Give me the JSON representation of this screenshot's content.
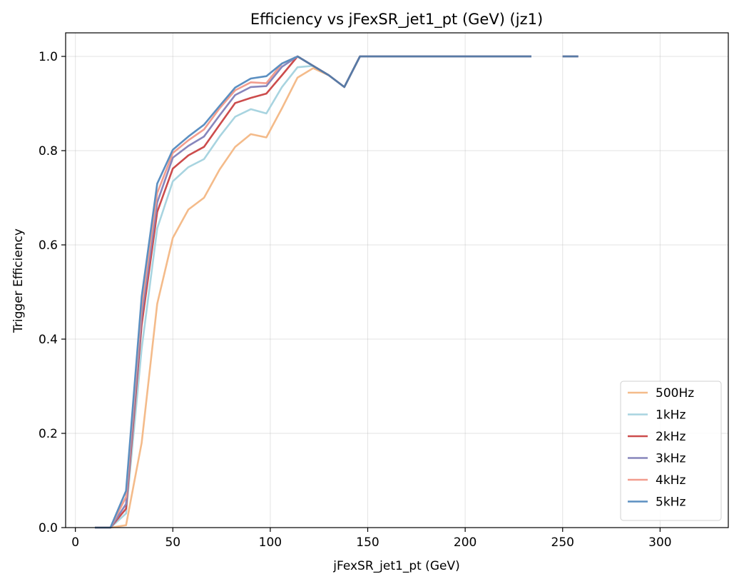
{
  "chart_data": {
    "type": "line",
    "title": "Efficiency vs jFexSR_jet1_pt (GeV) (jz1)",
    "xlabel": "jFexSR_jet1_pt (GeV)",
    "ylabel": "Trigger Efficiency",
    "xlim": [
      -5,
      335
    ],
    "ylim": [
      0,
      1.05
    ],
    "xticks": [
      0,
      50,
      100,
      150,
      200,
      250,
      300
    ],
    "yticks": [
      0.0,
      0.2,
      0.4,
      0.6,
      0.8,
      1.0
    ],
    "xtick_labels": [
      "0",
      "50",
      "100",
      "150",
      "200",
      "250",
      "300"
    ],
    "ytick_labels": [
      "0.0",
      "0.2",
      "0.4",
      "0.6",
      "0.8",
      "1.0"
    ],
    "grid": true,
    "legend_position": "lower right",
    "series": [
      {
        "name": "500Hz",
        "color": "#f4bb8a",
        "points": [
          [
            10,
            0
          ],
          [
            18,
            0
          ],
          [
            26,
            0.005
          ],
          [
            34,
            0.18
          ],
          [
            42,
            0.475
          ],
          [
            50,
            0.615
          ],
          [
            58,
            0.675
          ],
          [
            66,
            0.7
          ],
          [
            74,
            0.76
          ],
          [
            82,
            0.808
          ],
          [
            90,
            0.835
          ],
          [
            98,
            0.828
          ],
          [
            106,
            0.89
          ],
          [
            114,
            0.955
          ],
          [
            122,
            0.975
          ],
          [
            130,
            0.96
          ],
          [
            138,
            0.935
          ],
          [
            146,
            1
          ],
          [
            234,
            1
          ],
          null,
          [
            250,
            1
          ],
          [
            258,
            1
          ]
        ]
      },
      {
        "name": "1kHz",
        "color": "#a8d4e0",
        "points": [
          [
            10,
            0
          ],
          [
            18,
            0
          ],
          [
            26,
            0.03
          ],
          [
            34,
            0.38
          ],
          [
            42,
            0.635
          ],
          [
            50,
            0.735
          ],
          [
            58,
            0.765
          ],
          [
            66,
            0.782
          ],
          [
            74,
            0.83
          ],
          [
            82,
            0.872
          ],
          [
            90,
            0.888
          ],
          [
            98,
            0.879
          ],
          [
            106,
            0.935
          ],
          [
            114,
            0.977
          ],
          [
            122,
            0.98
          ],
          [
            130,
            0.96
          ],
          [
            138,
            0.935
          ],
          [
            146,
            1
          ],
          [
            234,
            1
          ],
          null,
          [
            250,
            1
          ],
          [
            258,
            1
          ]
        ]
      },
      {
        "name": "2kHz",
        "color": "#cc4c4c",
        "points": [
          [
            10,
            0
          ],
          [
            18,
            0
          ],
          [
            26,
            0.04
          ],
          [
            34,
            0.43
          ],
          [
            42,
            0.67
          ],
          [
            50,
            0.762
          ],
          [
            58,
            0.79
          ],
          [
            66,
            0.808
          ],
          [
            74,
            0.855
          ],
          [
            82,
            0.901
          ],
          [
            90,
            0.912
          ],
          [
            98,
            0.921
          ],
          [
            106,
            0.96
          ],
          [
            114,
            1
          ],
          [
            122,
            0.98
          ],
          [
            130,
            0.96
          ],
          [
            138,
            0.935
          ],
          [
            146,
            1
          ],
          [
            234,
            1
          ],
          null,
          [
            250,
            1
          ],
          [
            258,
            1
          ]
        ]
      },
      {
        "name": "3kHz",
        "color": "#8786bc",
        "points": [
          [
            10,
            0
          ],
          [
            18,
            0
          ],
          [
            26,
            0.05
          ],
          [
            34,
            0.45
          ],
          [
            42,
            0.69
          ],
          [
            50,
            0.785
          ],
          [
            58,
            0.81
          ],
          [
            66,
            0.83
          ],
          [
            74,
            0.875
          ],
          [
            82,
            0.918
          ],
          [
            90,
            0.935
          ],
          [
            98,
            0.937
          ],
          [
            106,
            0.978
          ],
          [
            114,
            1
          ],
          [
            122,
            0.98
          ],
          [
            130,
            0.96
          ],
          [
            138,
            0.935
          ],
          [
            146,
            1
          ],
          [
            234,
            1
          ],
          null,
          [
            250,
            1
          ],
          [
            258,
            1
          ]
        ]
      },
      {
        "name": "4kHz",
        "color": "#f29d8e",
        "points": [
          [
            10,
            0
          ],
          [
            18,
            0
          ],
          [
            26,
            0.065
          ],
          [
            34,
            0.47
          ],
          [
            42,
            0.71
          ],
          [
            50,
            0.795
          ],
          [
            58,
            0.822
          ],
          [
            66,
            0.845
          ],
          [
            74,
            0.89
          ],
          [
            82,
            0.928
          ],
          [
            90,
            0.945
          ],
          [
            98,
            0.943
          ],
          [
            106,
            0.985
          ],
          [
            114,
            1
          ],
          [
            122,
            0.98
          ],
          [
            130,
            0.96
          ],
          [
            138,
            0.935
          ],
          [
            146,
            1
          ],
          [
            234,
            1
          ],
          null,
          [
            250,
            1
          ],
          [
            258,
            1
          ]
        ]
      },
      {
        "name": "5kHz",
        "color": "#5b8fc1",
        "points": [
          [
            10,
            0
          ],
          [
            18,
            0
          ],
          [
            26,
            0.078
          ],
          [
            34,
            0.49
          ],
          [
            42,
            0.73
          ],
          [
            50,
            0.802
          ],
          [
            58,
            0.83
          ],
          [
            66,
            0.855
          ],
          [
            74,
            0.895
          ],
          [
            82,
            0.934
          ],
          [
            90,
            0.953
          ],
          [
            98,
            0.958
          ],
          [
            106,
            0.985
          ],
          [
            114,
            1
          ],
          [
            122,
            0.98
          ],
          [
            130,
            0.96
          ],
          [
            138,
            0.935
          ],
          [
            146,
            1
          ],
          [
            234,
            1
          ],
          null,
          [
            250,
            1
          ],
          [
            258,
            1
          ]
        ]
      }
    ],
    "overlap_color": "#587aa5"
  }
}
